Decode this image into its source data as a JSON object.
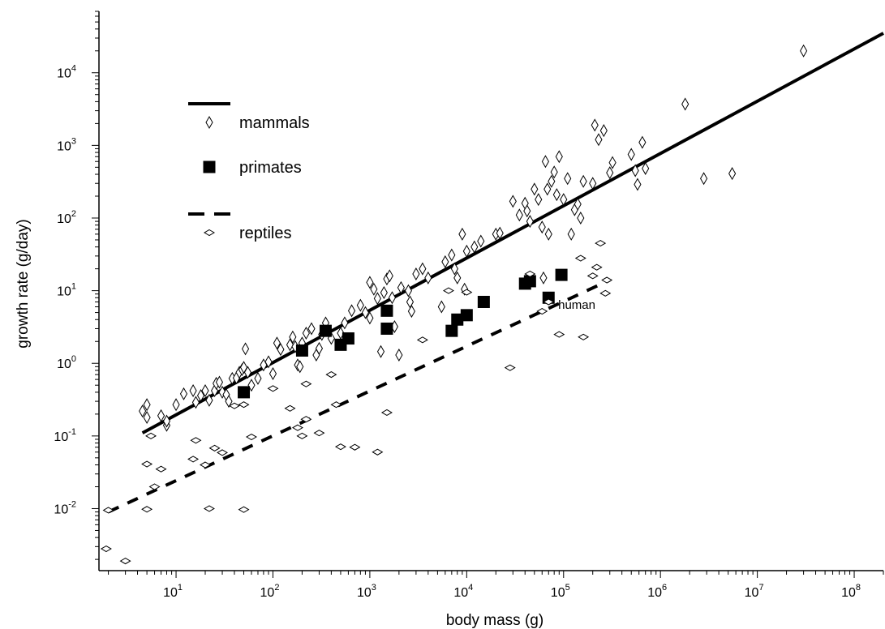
{
  "chart_data": {
    "type": "scatter",
    "xlabel": "body mass (g)",
    "ylabel": "growth rate (g/day)",
    "x_scale": "log",
    "y_scale": "log",
    "xlim": [
      1.6,
      200000000
    ],
    "ylim": [
      0.0014,
      70000
    ],
    "x_ticks": [
      {
        "value": 10,
        "base": "10",
        "exp": "1"
      },
      {
        "value": 100,
        "base": "10",
        "exp": "2"
      },
      {
        "value": 1000,
        "base": "10",
        "exp": "3"
      },
      {
        "value": 10000,
        "base": "10",
        "exp": "4"
      },
      {
        "value": 100000,
        "base": "10",
        "exp": "5"
      },
      {
        "value": 1000000,
        "base": "10",
        "exp": "6"
      },
      {
        "value": 10000000,
        "base": "10",
        "exp": "7"
      },
      {
        "value": 100000000,
        "base": "10",
        "exp": "8"
      }
    ],
    "y_ticks": [
      {
        "value": 0.01,
        "base": "10",
        "exp": "-2"
      },
      {
        "value": 0.1,
        "base": "10",
        "exp": "-1"
      },
      {
        "value": 1,
        "base": "10",
        "exp": "0"
      },
      {
        "value": 10,
        "base": "10",
        "exp": "1"
      },
      {
        "value": 100,
        "base": "10",
        "exp": "2"
      },
      {
        "value": 1000,
        "base": "10",
        "exp": "3"
      },
      {
        "value": 10000,
        "base": "10",
        "exp": "4"
      }
    ],
    "grid": false,
    "legend_position": "top-left",
    "legend": [
      {
        "label": "mammals",
        "marker": "diamond-open",
        "line": "solid"
      },
      {
        "label": "primates",
        "marker": "square-filled",
        "line": "none"
      },
      {
        "label": "reptiles",
        "marker": "diamond-wide-open",
        "line": "dashed"
      }
    ],
    "annotations": [
      {
        "text": "human",
        "x": 88000,
        "y": 5.6
      }
    ],
    "series": [
      {
        "name": "mammals",
        "marker": "diamond-open",
        "fit": {
          "style": "solid",
          "x": [
            4.5,
            200000000
          ],
          "y": [
            0.11,
            35000
          ]
        },
        "points": [
          [
            4.5,
            0.22
          ],
          [
            5,
            0.27
          ],
          [
            5,
            0.18
          ],
          [
            7,
            0.19
          ],
          [
            8,
            0.14
          ],
          [
            8,
            0.16
          ],
          [
            10,
            0.27
          ],
          [
            12,
            0.38
          ],
          [
            15,
            0.42
          ],
          [
            16,
            0.29
          ],
          [
            18,
            0.36
          ],
          [
            20,
            0.42
          ],
          [
            22,
            0.31
          ],
          [
            25,
            0.42
          ],
          [
            26,
            0.53
          ],
          [
            28,
            0.55
          ],
          [
            30,
            0.4
          ],
          [
            33,
            0.37
          ],
          [
            35,
            0.3
          ],
          [
            38,
            0.62
          ],
          [
            42,
            0.63
          ],
          [
            45,
            0.75
          ],
          [
            48,
            0.82
          ],
          [
            50,
            0.88
          ],
          [
            52,
            1.58
          ],
          [
            55,
            0.75
          ],
          [
            60,
            0.5
          ],
          [
            70,
            0.62
          ],
          [
            80,
            0.95
          ],
          [
            90,
            1.05
          ],
          [
            100,
            0.72
          ],
          [
            110,
            1.9
          ],
          [
            120,
            1.55
          ],
          [
            150,
            1.8
          ],
          [
            160,
            2.3
          ],
          [
            170,
            1.7
          ],
          [
            180,
            0.95
          ],
          [
            190,
            0.9
          ],
          [
            200,
            1.9
          ],
          [
            220,
            2.6
          ],
          [
            250,
            3.0
          ],
          [
            280,
            1.3
          ],
          [
            300,
            1.6
          ],
          [
            320,
            2.5
          ],
          [
            350,
            3.6
          ],
          [
            400,
            2.2
          ],
          [
            500,
            2.6
          ],
          [
            550,
            3.6
          ],
          [
            650,
            5.3
          ],
          [
            800,
            6.3
          ],
          [
            900,
            5.0
          ],
          [
            1000,
            4.2
          ],
          [
            1000,
            13
          ],
          [
            1100,
            10.5
          ],
          [
            1200,
            7.8
          ],
          [
            1300,
            1.45
          ],
          [
            1400,
            9.4
          ],
          [
            1500,
            14.5
          ],
          [
            1600,
            16
          ],
          [
            1700,
            8.0
          ],
          [
            1800,
            3.2
          ],
          [
            2000,
            1.3
          ],
          [
            2100,
            11
          ],
          [
            2500,
            10
          ],
          [
            2600,
            7.0
          ],
          [
            2700,
            5.2
          ],
          [
            3000,
            17
          ],
          [
            3500,
            20
          ],
          [
            4000,
            15
          ],
          [
            5500,
            6.0
          ],
          [
            6000,
            25
          ],
          [
            7000,
            31
          ],
          [
            7500,
            20
          ],
          [
            8000,
            15
          ],
          [
            9000,
            60
          ],
          [
            9500,
            10.5
          ],
          [
            10000,
            35
          ],
          [
            12000,
            40
          ],
          [
            14000,
            48
          ],
          [
            20000,
            60
          ],
          [
            22000,
            62
          ],
          [
            30000,
            170
          ],
          [
            35000,
            110
          ],
          [
            40000,
            160
          ],
          [
            42000,
            125
          ],
          [
            45000,
            90
          ],
          [
            50000,
            250
          ],
          [
            55000,
            180
          ],
          [
            60000,
            75
          ],
          [
            62000,
            15
          ],
          [
            65000,
            600
          ],
          [
            68000,
            250
          ],
          [
            70000,
            60
          ],
          [
            75000,
            320
          ],
          [
            80000,
            430
          ],
          [
            85000,
            210
          ],
          [
            90000,
            700
          ],
          [
            100000,
            180
          ],
          [
            110000,
            350
          ],
          [
            120000,
            60
          ],
          [
            130000,
            130
          ],
          [
            140000,
            155
          ],
          [
            150000,
            100
          ],
          [
            160000,
            320
          ],
          [
            200000,
            300
          ],
          [
            210000,
            1900
          ],
          [
            230000,
            1200
          ],
          [
            260000,
            1600
          ],
          [
            300000,
            420
          ],
          [
            320000,
            580
          ],
          [
            500000,
            750
          ],
          [
            550000,
            450
          ],
          [
            580000,
            290
          ],
          [
            650000,
            1100
          ],
          [
            700000,
            480
          ],
          [
            1800000,
            3700
          ],
          [
            2800000,
            350
          ],
          [
            5500000,
            410
          ],
          [
            30000000,
            20000
          ]
        ]
      },
      {
        "name": "primates",
        "marker": "square-filled",
        "points": [
          [
            50,
            0.4
          ],
          [
            200,
            1.5
          ],
          [
            350,
            2.8
          ],
          [
            500,
            1.8
          ],
          [
            600,
            2.2
          ],
          [
            1500,
            5.3
          ],
          [
            1500,
            3.0
          ],
          [
            7000,
            2.8
          ],
          [
            8000,
            4.0
          ],
          [
            10000,
            4.6
          ],
          [
            15000,
            7.0
          ],
          [
            40000,
            12.5
          ],
          [
            45000,
            13.5
          ],
          [
            70000,
            8.0
          ],
          [
            95000,
            16.5
          ]
        ]
      },
      {
        "name": "reptiles",
        "marker": "diamond-wide-open",
        "fit": {
          "style": "dashed",
          "x": [
            2,
            300000
          ],
          "y": [
            0.009,
            14
          ]
        },
        "points": [
          [
            1.9,
            0.0028
          ],
          [
            2,
            0.0095
          ],
          [
            3,
            0.0019
          ],
          [
            5,
            0.041
          ],
          [
            5,
            0.0098
          ],
          [
            6,
            0.02
          ],
          [
            7,
            0.035
          ],
          [
            5.5,
            0.1
          ],
          [
            15,
            0.048
          ],
          [
            16,
            0.087
          ],
          [
            20,
            0.04
          ],
          [
            22,
            0.01
          ],
          [
            25,
            0.068
          ],
          [
            30,
            0.059
          ],
          [
            40,
            0.26
          ],
          [
            50,
            0.0097
          ],
          [
            50,
            0.27
          ],
          [
            60,
            0.097
          ],
          [
            100,
            0.45
          ],
          [
            150,
            0.24
          ],
          [
            180,
            0.13
          ],
          [
            200,
            0.1
          ],
          [
            220,
            0.17
          ],
          [
            220,
            0.52
          ],
          [
            300,
            0.11
          ],
          [
            400,
            0.7
          ],
          [
            450,
            0.27
          ],
          [
            500,
            0.071
          ],
          [
            700,
            0.07
          ],
          [
            1200,
            0.06
          ],
          [
            1500,
            0.21
          ],
          [
            3500,
            2.1
          ],
          [
            6500,
            10
          ],
          [
            10000,
            9.5
          ],
          [
            28000,
            0.87
          ],
          [
            45000,
            17
          ],
          [
            60000,
            5.2
          ],
          [
            70000,
            7.0
          ],
          [
            90000,
            2.5
          ],
          [
            150000,
            28
          ],
          [
            160000,
            2.3
          ],
          [
            200000,
            16
          ],
          [
            220000,
            21
          ],
          [
            240000,
            45
          ],
          [
            270000,
            9.2
          ],
          [
            280000,
            14
          ]
        ]
      }
    ]
  }
}
